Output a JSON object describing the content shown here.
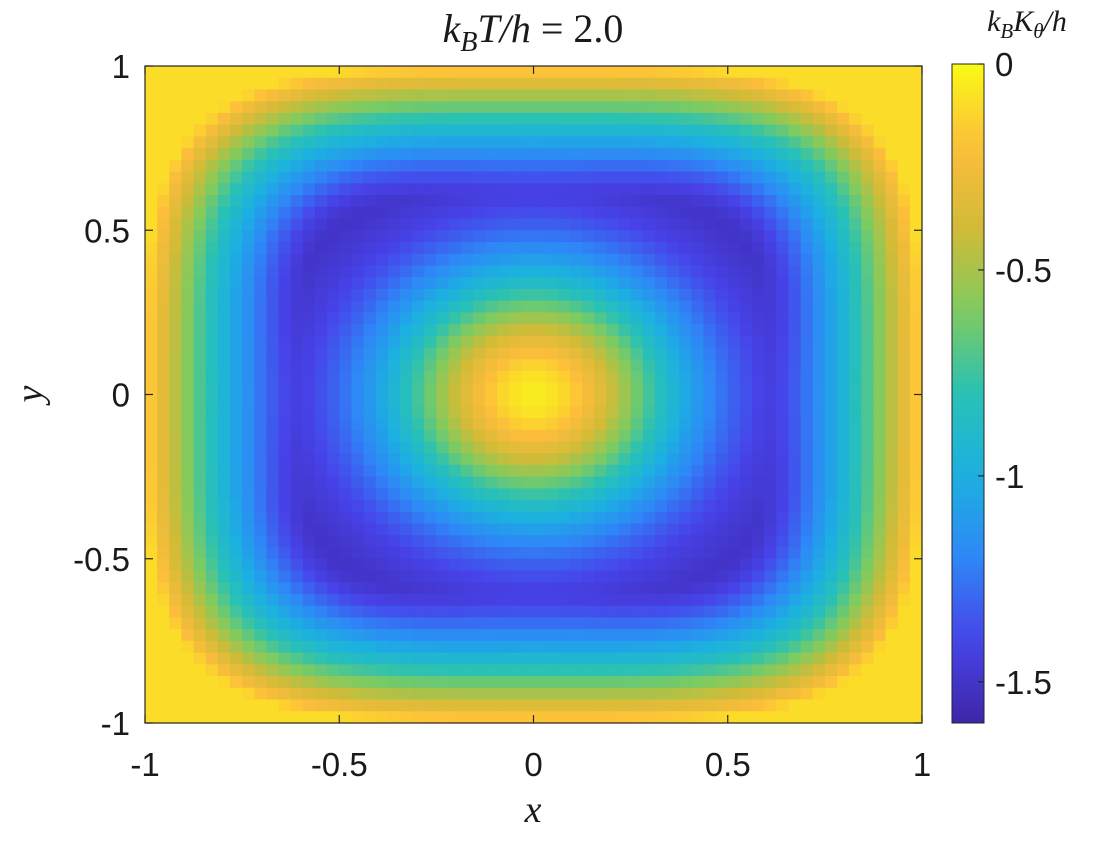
{
  "chart_data": {
    "type": "heatmap",
    "title": "k_B T/h = 2.0",
    "xlabel": "x",
    "ylabel": "y",
    "xlim": [
      -1,
      1
    ],
    "ylim": [
      -1,
      1
    ],
    "xticks": [
      -1,
      -0.5,
      0,
      0.5,
      1
    ],
    "yticks": [
      -1,
      -0.5,
      0,
      0.5,
      1
    ],
    "xtick_labels": [
      "-1",
      "-0.5",
      "0",
      "0.5",
      "1"
    ],
    "ytick_labels": [
      "-1",
      "-0.5",
      "0",
      "0.5",
      "1"
    ],
    "grid": {
      "nx": 64,
      "ny": 56
    },
    "colorbar": {
      "label": "k_B K_θ/h",
      "range": [
        -1.6,
        0
      ],
      "ticks": [
        0,
        -0.5,
        -1,
        -1.5
      ],
      "tick_labels": [
        "0",
        "-0.5",
        "-1",
        "-1.5"
      ],
      "colormap": "parula"
    },
    "field_description": {
      "center_value": -0.05,
      "min_ring_radius": 0.6,
      "ring_min_value": -1.55,
      "boundary_value": -0.1
    },
    "colors": [
      "#3e26a8",
      "#4743e9",
      "#2e87f7",
      "#1cb0e1",
      "#29c1b5",
      "#7fcb5f",
      "#d1bb37",
      "#fdbd3c",
      "#f9fb15"
    ]
  }
}
